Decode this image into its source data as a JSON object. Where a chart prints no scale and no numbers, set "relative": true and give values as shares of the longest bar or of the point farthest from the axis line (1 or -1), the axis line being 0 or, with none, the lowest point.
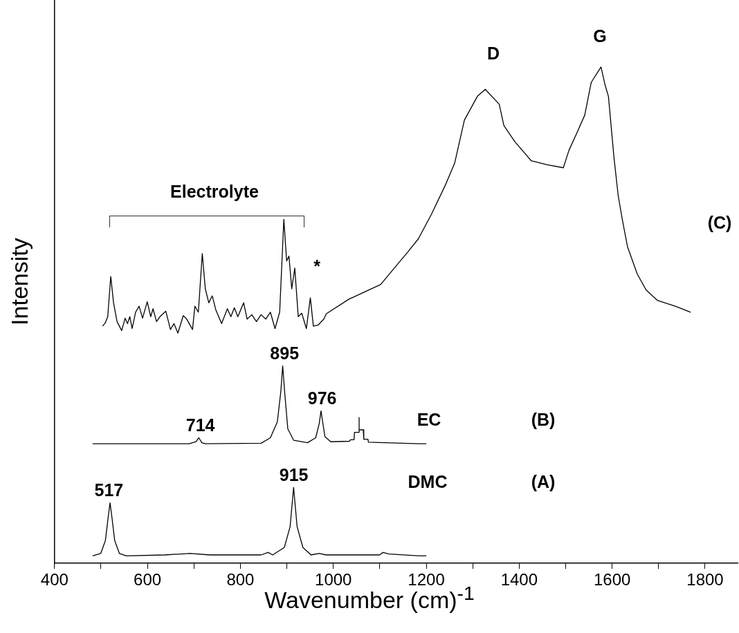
{
  "chart_data": {
    "type": "line",
    "xlabel": "Wavenumber (cm)$^{-1}$",
    "ylabel": "Intensity",
    "relative": true,
    "marker": "none",
    "grid": false,
    "legend": false,
    "xlim": [
      400,
      1870
    ],
    "xticks": [
      400,
      {
        "value": 500,
        "label": null
      },
      600,
      {
        "value": 700,
        "label": null
      },
      800,
      {
        "value": 900,
        "label": null
      },
      1000,
      {
        "value": 1100,
        "label": null
      },
      1200,
      {
        "value": 1300,
        "label": null
      },
      1400,
      {
        "value": 1500,
        "label": null
      },
      1600,
      {
        "value": 1700,
        "label": null
      },
      1800
    ],
    "series": [
      {
        "color": "#000000",
        "x": [
          482,
          499.5,
          509.5,
          515.5,
          519.5,
          523.5,
          529.5,
          539.5,
          554.5,
          637,
          692,
          734.5,
          844.5,
          859.5,
          869.5,
          894.5,
          907,
          914.5,
          922,
          934.5,
          952,
          969.5,
          984.5,
          1099.5,
          1107,
          1119.5,
          1184.5,
          1200
        ],
        "values": [
          0.015,
          0.02,
          0.046,
          0.093,
          0.122,
          0.093,
          0.046,
          0.02,
          0.015,
          0.017,
          0.02,
          0.017,
          0.017,
          0.022,
          0.017,
          0.032,
          0.074,
          0.153,
          0.074,
          0.032,
          0.017,
          0.02,
          0.017,
          0.017,
          0.022,
          0.019,
          0.015,
          0.015
        ]
      },
      {
        "color": "#000000",
        "x": [
          482,
          689.5,
          704.5,
          710.5,
          717,
          724.5,
          844.5,
          864.5,
          879.5,
          887,
          891,
          895.5,
          902,
          914.5,
          944.5,
          962,
          969.5,
          973.5,
          977,
          982,
          994.5,
          1034.5,
          1037,
          1044.5,
          1045.5,
          1055.5,
          1055.5,
          1055.5,
          1064.5,
          1065.5,
          1074.5,
          1075.5,
          1184.5,
          1200
        ],
        "values": [
          0.241,
          0.241,
          0.245,
          0.253,
          0.243,
          0.241,
          0.242,
          0.253,
          0.285,
          0.346,
          0.398,
          0.342,
          0.271,
          0.248,
          0.243,
          0.253,
          0.281,
          0.307,
          0.285,
          0.255,
          0.245,
          0.246,
          0.249,
          0.249,
          0.264,
          0.264,
          0.294,
          0.269,
          0.269,
          0.25,
          0.25,
          0.244,
          0.241,
          0.241
        ]
      },
      {
        "color": "#000000",
        "x": [
          503.5,
          509.5,
          514.5,
          521,
          527,
          534.5,
          544.5,
          552,
          557,
          562,
          567,
          574.5,
          582,
          589.5,
          599.5,
          607,
          612,
          619.5,
          627,
          639.5,
          649.5,
          657,
          665.5,
          677,
          684.5,
          697,
          702,
          709.5,
          718,
          724.5,
          732,
          739.5,
          747,
          759.5,
          772,
          779.5,
          787,
          794.5,
          807,
          814.5,
          824.5,
          834.5,
          844.5,
          854.5,
          864.5,
          874.5,
          884.5,
          893.5,
          899.5,
          904.5,
          910.5,
          917,
          924.5,
          932,
          942,
          950.5,
          957,
          967,
          979.5,
          985,
          1033,
          1102,
          1126,
          1160,
          1183,
          1211,
          1241,
          1261,
          1282,
          1310,
          1327,
          1357,
          1367,
          1391,
          1426,
          1460,
          1495,
          1507,
          1523,
          1541,
          1555,
          1576,
          1585,
          1592,
          1604,
          1613,
          1622,
          1633,
          1654,
          1673,
          1697,
          1736,
          1769
        ],
        "values": [
          0.478,
          0.485,
          0.497,
          0.578,
          0.525,
          0.487,
          0.469,
          0.494,
          0.483,
          0.497,
          0.473,
          0.506,
          0.518,
          0.494,
          0.527,
          0.497,
          0.513,
          0.487,
          0.497,
          0.508,
          0.471,
          0.483,
          0.464,
          0.499,
          0.492,
          0.471,
          0.518,
          0.506,
          0.624,
          0.553,
          0.525,
          0.539,
          0.511,
          0.483,
          0.513,
          0.497,
          0.515,
          0.497,
          0.525,
          0.492,
          0.501,
          0.487,
          0.501,
          0.492,
          0.506,
          0.473,
          0.506,
          0.693,
          0.609,
          0.619,
          0.553,
          0.595,
          0.497,
          0.504,
          0.473,
          0.535,
          0.478,
          0.48,
          0.492,
          0.503,
          0.532,
          0.562,
          0.589,
          0.627,
          0.654,
          0.703,
          0.762,
          0.806,
          0.893,
          0.941,
          0.955,
          0.925,
          0.882,
          0.849,
          0.811,
          0.803,
          0.797,
          0.832,
          0.865,
          0.903,
          0.969,
          1,
          0.963,
          0.941,
          0.817,
          0.741,
          0.692,
          0.638,
          0.583,
          0.551,
          0.53,
          0.518,
          0.506
        ]
      }
    ],
    "annotations": [
      {
        "text": "517",
        "x": 517,
        "y": 0.122
      },
      {
        "text": "915",
        "x": 915,
        "y": 0.153
      },
      {
        "text": "714",
        "x": 714,
        "y": 0.253
      },
      {
        "text": "895",
        "x": 895,
        "y": 0.398
      },
      {
        "text": "976",
        "x": 976,
        "y": 0.307
      },
      "DMC",
      "(A)",
      "EC",
      "(B)",
      "(C)",
      "*",
      "D",
      "G",
      "Electrolyte"
    ]
  }
}
